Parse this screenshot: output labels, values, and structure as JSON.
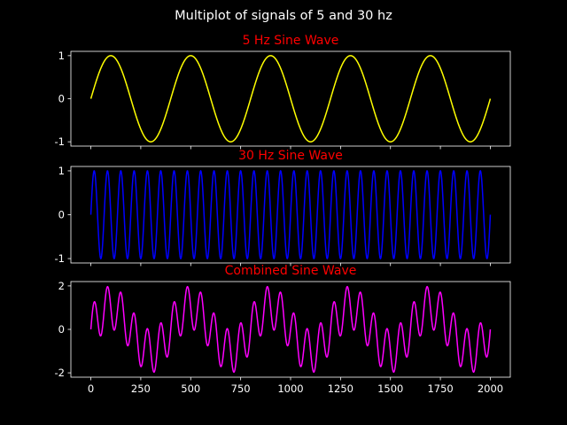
{
  "figure": {
    "suptitle": "Multiplot of signals of 5 and 30 hz",
    "background": "#000000",
    "axes_color": "#ffffff",
    "title_color": "#ff0000"
  },
  "chart_data": [
    {
      "type": "line",
      "title": "5 Hz Sine Wave",
      "xlabel": "",
      "ylabel": "",
      "x_range": [
        0,
        2000
      ],
      "xlim": [
        -100,
        2100
      ],
      "ylim": [
        -1.1,
        1.1
      ],
      "yticks": [
        "-1",
        "0",
        "1"
      ],
      "ytick_values": [
        -1,
        0,
        1
      ],
      "xticks": [
        0,
        250,
        500,
        750,
        1000,
        1250,
        1500,
        1750,
        2000
      ],
      "xtick_labels_shown": false,
      "grid": false,
      "series": [
        {
          "color": "#ffff00",
          "frequency_hz": 5,
          "amplitude": 1,
          "samples": 2000,
          "sample_rate": 2000
        }
      ]
    },
    {
      "type": "line",
      "title": "30 Hz Sine Wave",
      "xlabel": "",
      "ylabel": "",
      "x_range": [
        0,
        2000
      ],
      "xlim": [
        -100,
        2100
      ],
      "ylim": [
        -1.1,
        1.1
      ],
      "yticks": [
        "-1",
        "0",
        "1"
      ],
      "ytick_values": [
        -1,
        0,
        1
      ],
      "xticks": [
        0,
        250,
        500,
        750,
        1000,
        1250,
        1500,
        1750,
        2000
      ],
      "xtick_labels_shown": false,
      "grid": false,
      "series": [
        {
          "color": "#0000ff",
          "frequency_hz": 30,
          "amplitude": 1,
          "samples": 2000,
          "sample_rate": 2000
        }
      ]
    },
    {
      "type": "line",
      "title": "Combined Sine Wave",
      "xlabel": "",
      "ylabel": "",
      "x_range": [
        0,
        2000
      ],
      "xlim": [
        -100,
        2100
      ],
      "ylim": [
        -2.2,
        2.2
      ],
      "yticks": [
        "-2",
        "0",
        "2"
      ],
      "ytick_values": [
        -2,
        0,
        2
      ],
      "xticks": [
        0,
        250,
        500,
        750,
        1000,
        1250,
        1500,
        1750,
        2000
      ],
      "xtick_labels": [
        "0",
        "250",
        "500",
        "750",
        "1000",
        "1250",
        "1500",
        "1750",
        "2000"
      ],
      "xtick_labels_shown": true,
      "grid": false,
      "series": [
        {
          "color": "#ff00ff",
          "components_hz": [
            5,
            30
          ],
          "amplitude": 1,
          "samples": 2000,
          "sample_rate": 2000
        }
      ]
    }
  ]
}
